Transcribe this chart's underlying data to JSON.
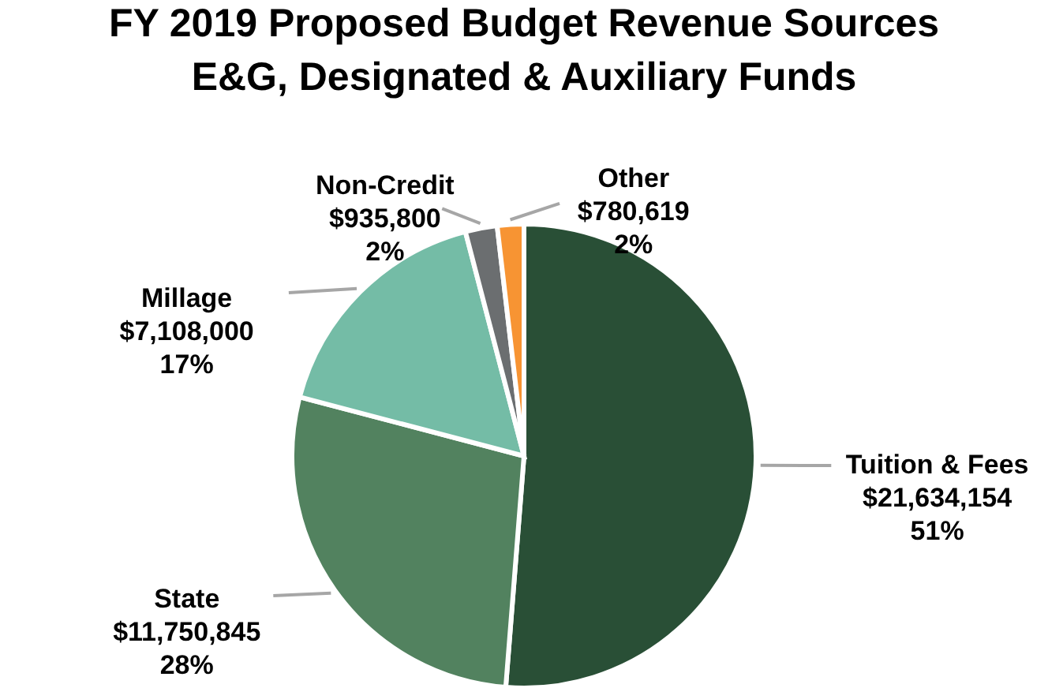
{
  "chart_data": {
    "type": "pie",
    "title": "FY 2019 Proposed Budget Revenue Sources\nE&G, Designated & Auxiliary Funds",
    "categories": [
      "Tuition & Fees",
      "State",
      "Millage",
      "Non-Credit",
      "Other"
    ],
    "values": [
      21634154,
      11750845,
      7108000,
      935800,
      780619
    ],
    "colors": [
      "#294f36",
      "#52825f",
      "#74bca6",
      "#6b6e70",
      "#f79433"
    ],
    "value_labels": [
      "$21,634,154\n51%",
      "$11,750,845\n28%",
      "$7,108,000\n17%",
      "$935,800\n2%",
      "$780,619\n2%"
    ]
  }
}
